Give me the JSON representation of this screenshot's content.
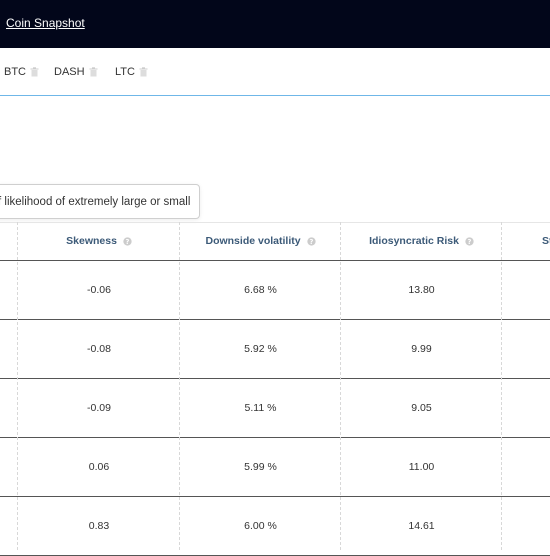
{
  "topbar": {
    "link_label": "Coin Snapshot"
  },
  "coins": [
    {
      "label": "BTC"
    },
    {
      "label": "DASH"
    },
    {
      "label": "LTC"
    }
  ],
  "tooltip": {
    "text": "f likelihood of extremely large or small"
  },
  "table": {
    "headers": [
      "Skewness",
      "Downside volatility",
      "Idiosyncratic Risk",
      "St"
    ],
    "rows": [
      [
        "-0.06",
        "6.68 %",
        "13.80"
      ],
      [
        "-0.08",
        "5.92 %",
        "9.99"
      ],
      [
        "-0.09",
        "5.11 %",
        "9.05"
      ],
      [
        "0.06",
        "5.99 %",
        "11.00"
      ],
      [
        "0.83",
        "6.00 %",
        "14.61"
      ]
    ]
  },
  "colors": {
    "topbar_bg": "#02061a",
    "header_text": "#3c5a78",
    "accent_line": "#6fb7e8"
  }
}
